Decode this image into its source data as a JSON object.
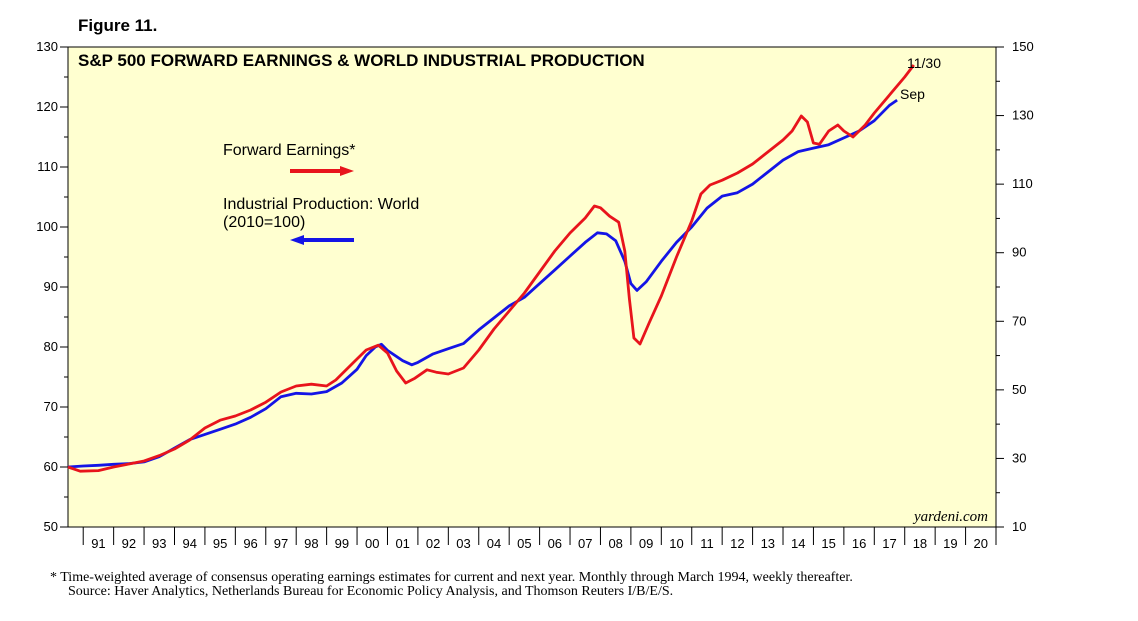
{
  "figure_label": "Figure 11.",
  "chart_data": {
    "type": "line",
    "title": "S&P 500 FORWARD EARNINGS & WORLD INDUSTRIAL PRODUCTION",
    "left_axis": {
      "range": [
        50,
        130
      ],
      "ticks": [
        50,
        60,
        70,
        80,
        90,
        100,
        110,
        120,
        130
      ]
    },
    "right_axis": {
      "range": [
        10,
        150
      ],
      "ticks": [
        10,
        30,
        50,
        70,
        90,
        110,
        130,
        150
      ]
    },
    "x_range": [
      1990.5,
      2021
    ],
    "years": [
      "91",
      "92",
      "93",
      "94",
      "95",
      "96",
      "97",
      "98",
      "99",
      "00",
      "01",
      "02",
      "03",
      "04",
      "05",
      "06",
      "07",
      "08",
      "09",
      "10",
      "11",
      "12",
      "13",
      "14",
      "15",
      "16",
      "17",
      "18",
      "19",
      "20"
    ],
    "series": [
      {
        "name": "Forward Earnings*",
        "axis": "left",
        "color": "#e8141c",
        "end_label": "11/30",
        "points": [
          [
            1990.5,
            60
          ],
          [
            1990.9,
            59.3
          ],
          [
            1991.5,
            59.4
          ],
          [
            1992.0,
            60.0
          ],
          [
            1992.5,
            60.5
          ],
          [
            1993.0,
            61.0
          ],
          [
            1993.5,
            61.9
          ],
          [
            1994.0,
            63.0
          ],
          [
            1994.5,
            64.5
          ],
          [
            1995.0,
            66.5
          ],
          [
            1995.5,
            67.8
          ],
          [
            1996.0,
            68.5
          ],
          [
            1996.5,
            69.5
          ],
          [
            1997.0,
            70.8
          ],
          [
            1997.5,
            72.5
          ],
          [
            1998.0,
            73.5
          ],
          [
            1998.5,
            73.8
          ],
          [
            1999.0,
            73.5
          ],
          [
            1999.3,
            74.5
          ],
          [
            1999.7,
            76.5
          ],
          [
            2000.0,
            78.0
          ],
          [
            2000.3,
            79.5
          ],
          [
            2000.7,
            80.3
          ],
          [
            2001.0,
            79.0
          ],
          [
            2001.3,
            76.0
          ],
          [
            2001.6,
            74.0
          ],
          [
            2001.9,
            74.8
          ],
          [
            2002.3,
            76.2
          ],
          [
            2002.6,
            75.8
          ],
          [
            2003.0,
            75.5
          ],
          [
            2003.5,
            76.5
          ],
          [
            2004.0,
            79.5
          ],
          [
            2004.5,
            83.0
          ],
          [
            2005.0,
            86.0
          ],
          [
            2005.5,
            89.0
          ],
          [
            2006.0,
            92.5
          ],
          [
            2006.5,
            96.0
          ],
          [
            2007.0,
            99.0
          ],
          [
            2007.5,
            101.5
          ],
          [
            2007.8,
            103.5
          ],
          [
            2008.0,
            103.2
          ],
          [
            2008.3,
            101.8
          ],
          [
            2008.6,
            100.8
          ],
          [
            2008.8,
            96.0
          ],
          [
            2008.95,
            88.0
          ],
          [
            2009.1,
            81.5
          ],
          [
            2009.3,
            80.5
          ],
          [
            2009.6,
            84.0
          ],
          [
            2010.0,
            88.5
          ],
          [
            2010.5,
            95.0
          ],
          [
            2011.0,
            101.0
          ],
          [
            2011.3,
            105.5
          ],
          [
            2011.6,
            107.0
          ],
          [
            2012.0,
            107.8
          ],
          [
            2012.5,
            109.0
          ],
          [
            2013.0,
            110.5
          ],
          [
            2013.5,
            112.5
          ],
          [
            2014.0,
            114.5
          ],
          [
            2014.3,
            116.0
          ],
          [
            2014.6,
            118.5
          ],
          [
            2014.8,
            117.5
          ],
          [
            2015.0,
            114.0
          ],
          [
            2015.2,
            113.8
          ],
          [
            2015.5,
            116.0
          ],
          [
            2015.8,
            117.0
          ],
          [
            2016.0,
            116.0
          ],
          [
            2016.3,
            115.0
          ],
          [
            2016.7,
            117.0
          ],
          [
            2017.0,
            119.0
          ],
          [
            2017.5,
            122.0
          ],
          [
            2018.0,
            125.0
          ],
          [
            2018.3,
            127.0
          ]
        ]
      },
      {
        "name": "Industrial Production: World",
        "name_line2": "(2010=100)",
        "axis": "right",
        "color": "#1414e6",
        "end_label": "Sep",
        "points": [
          [
            1990.5,
            27.5
          ],
          [
            1991.0,
            27.8
          ],
          [
            1991.5,
            28.0
          ],
          [
            1992.0,
            28.3
          ],
          [
            1992.5,
            28.5
          ],
          [
            1993.0,
            29.0
          ],
          [
            1993.5,
            30.5
          ],
          [
            1994.0,
            33.0
          ],
          [
            1994.5,
            35.5
          ],
          [
            1995.0,
            37.0
          ],
          [
            1995.5,
            38.5
          ],
          [
            1996.0,
            40.0
          ],
          [
            1996.5,
            42.0
          ],
          [
            1997.0,
            44.5
          ],
          [
            1997.5,
            48.0
          ],
          [
            1998.0,
            49.0
          ],
          [
            1998.5,
            48.8
          ],
          [
            1999.0,
            49.5
          ],
          [
            1999.5,
            52.0
          ],
          [
            2000.0,
            56.0
          ],
          [
            2000.3,
            60.0
          ],
          [
            2000.6,
            62.5
          ],
          [
            2000.8,
            63.3
          ],
          [
            2001.0,
            61.5
          ],
          [
            2001.5,
            58.5
          ],
          [
            2001.8,
            57.3
          ],
          [
            2002.0,
            58.0
          ],
          [
            2002.5,
            60.5
          ],
          [
            2003.0,
            62.0
          ],
          [
            2003.5,
            63.5
          ],
          [
            2004.0,
            67.5
          ],
          [
            2004.5,
            71.0
          ],
          [
            2005.0,
            74.5
          ],
          [
            2005.5,
            77.0
          ],
          [
            2006.0,
            81.0
          ],
          [
            2006.5,
            85.0
          ],
          [
            2007.0,
            89.0
          ],
          [
            2007.5,
            93.0
          ],
          [
            2007.9,
            95.8
          ],
          [
            2008.2,
            95.5
          ],
          [
            2008.5,
            93.5
          ],
          [
            2008.8,
            87.5
          ],
          [
            2009.0,
            81.0
          ],
          [
            2009.2,
            79.0
          ],
          [
            2009.5,
            81.5
          ],
          [
            2010.0,
            87.5
          ],
          [
            2010.5,
            93.0
          ],
          [
            2011.0,
            97.5
          ],
          [
            2011.5,
            103.0
          ],
          [
            2012.0,
            106.5
          ],
          [
            2012.5,
            107.5
          ],
          [
            2013.0,
            110.0
          ],
          [
            2013.5,
            113.5
          ],
          [
            2014.0,
            117.0
          ],
          [
            2014.5,
            119.5
          ],
          [
            2015.0,
            120.5
          ],
          [
            2015.5,
            121.5
          ],
          [
            2016.0,
            123.5
          ],
          [
            2016.5,
            125.5
          ],
          [
            2017.0,
            128.5
          ],
          [
            2017.5,
            133.0
          ],
          [
            2017.75,
            134.5
          ]
        ]
      }
    ],
    "watermark": "yardeni.com",
    "footnote_line1": "*   Time-weighted average of consensus operating earnings estimates for current and next year. Monthly through March 1994, weekly thereafter.",
    "footnote_line2": "Source: Haver Analytics, Netherlands Bureau for Economic Policy Analysis, and Thomson Reuters I/B/E/S."
  },
  "colors": {
    "plot_bg": "#ffffd0",
    "earnings": "#e8141c",
    "production": "#1414e6"
  }
}
